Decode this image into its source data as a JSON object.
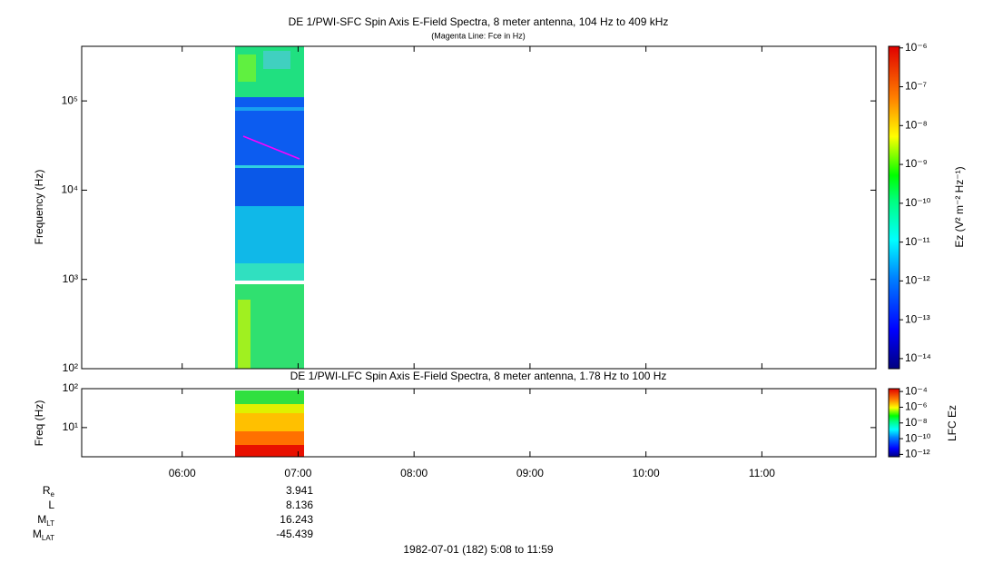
{
  "chart_data": [
    {
      "type": "spectrogram",
      "title": "DE 1/PWI-SFC  Spin Axis E-Field Spectra, 8 meter antenna, 104 Hz to 409 kHz",
      "subtitle": "(Magenta Line: Fce in Hz)",
      "ylabel": "Frequency (Hz)",
      "log_y": true,
      "ylim": [
        100,
        409000
      ],
      "yticks": [
        {
          "value": 100,
          "label": "10²"
        },
        {
          "value": 1000,
          "label": "10³"
        },
        {
          "value": 10000,
          "label": "10⁴"
        },
        {
          "value": 100000,
          "label": "10⁵"
        }
      ],
      "colorbar": {
        "label": "Ez (V² m⁻² Hz⁻¹)",
        "zlim": [
          5.5e-15,
          1.1e-06
        ],
        "zticks": [
          {
            "value": 1e-06,
            "label": "10⁻⁶"
          },
          {
            "value": 1e-07,
            "label": "10⁻⁷"
          },
          {
            "value": 1e-08,
            "label": "10⁻⁸"
          },
          {
            "value": 1e-09,
            "label": "10⁻⁹"
          },
          {
            "value": 1e-10,
            "label": "10⁻¹⁰"
          },
          {
            "value": 1e-11,
            "label": "10⁻¹¹"
          },
          {
            "value": 1e-12,
            "label": "10⁻¹²"
          },
          {
            "value": 1e-13,
            "label": "10⁻¹³"
          },
          {
            "value": 1e-14,
            "label": "10⁻¹⁴"
          }
        ]
      }
    },
    {
      "type": "spectrogram",
      "title": "DE 1/PWI-LFC  Spin Axis E-Field Spectra, 8 meter antenna, 1.78 Hz to 100 Hz",
      "ylabel": "Freq (Hz)",
      "log_y": true,
      "ylim": [
        1.78,
        100
      ],
      "yticks": [
        {
          "value": 10,
          "label": "10¹"
        },
        {
          "value": 100,
          "label": "10²"
        }
      ],
      "xlim": [
        308,
        719
      ],
      "xticks": [
        {
          "value": 360,
          "label": "06:00"
        },
        {
          "value": 420,
          "label": "07:00"
        },
        {
          "value": 480,
          "label": "08:00"
        },
        {
          "value": 540,
          "label": "09:00"
        },
        {
          "value": 600,
          "label": "10:00"
        },
        {
          "value": 660,
          "label": "11:00"
        }
      ],
      "colorbar": {
        "label": "LFC Ez",
        "zlim": [
          5e-13,
          0.00023
        ],
        "zticks": [
          {
            "value": 0.0001,
            "label": "10⁻⁴"
          },
          {
            "value": 1e-06,
            "label": "10⁻⁶"
          },
          {
            "value": 1e-08,
            "label": "10⁻⁸"
          },
          {
            "value": 1e-10,
            "label": "10⁻¹⁰"
          },
          {
            "value": 1e-12,
            "label": "10⁻¹²"
          }
        ]
      }
    }
  ],
  "ephemeris": {
    "rows": [
      {
        "label": "R",
        "sub": "e",
        "value": 3.941
      },
      {
        "label": "L",
        "value": 8.136
      },
      {
        "label": "M",
        "sub": "LT",
        "value": 16.243
      },
      {
        "label": "M",
        "sub": "LAT",
        "value": -45.439
      }
    ]
  },
  "footer": "1982-07-01 (182) 5:08 to 11:59"
}
